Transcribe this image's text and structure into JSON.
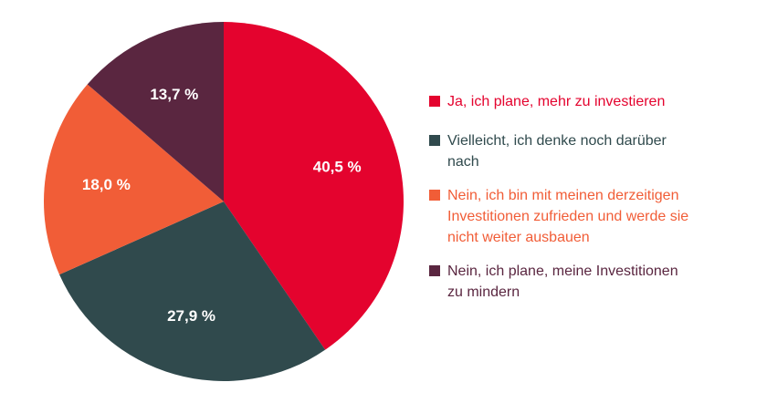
{
  "chart_data": {
    "type": "pie",
    "slices": [
      {
        "name": "Ja, ich plane, mehr zu investieren",
        "value": 40.5,
        "label": "40,5 %",
        "color": "#e4032e"
      },
      {
        "name": "Vielleicht, ich denke noch darüber nach",
        "value": 27.9,
        "label": "27,9 %",
        "color": "#304a4d"
      },
      {
        "name": "Nein, ich bin mit meinen derzeitigen Investitionen zufrieden und werde sie nicht weiter ausbauen",
        "value": 18.0,
        "label": "18,0 %",
        "color": "#f15d37"
      },
      {
        "name": "Nein, ich plane, meine Investitionen zu mindern",
        "value": 13.7,
        "label": "13,7 %",
        "color": "#5a2640"
      }
    ],
    "legend_position": "right"
  },
  "legend": [
    {
      "lines": [
        "Ja, ich plane, mehr zu investieren"
      ],
      "color": "#e4032e",
      "text_color": "#e4032e"
    },
    {
      "lines": [
        "Vielleicht, ich denke noch darüber",
        "nach"
      ],
      "color": "#304a4d",
      "text_color": "#304a4d"
    },
    {
      "lines": [
        "Nein, ich bin mit meinen derzeitigen",
        "Investitionen zufrieden und werde sie",
        "nicht weiter ausbauen"
      ],
      "color": "#f15d37",
      "text_color": "#f15d37"
    },
    {
      "lines": [
        "Nein, ich plane, meine Investitionen",
        "zu mindern"
      ],
      "color": "#5a2640",
      "text_color": "#5a2640"
    }
  ]
}
